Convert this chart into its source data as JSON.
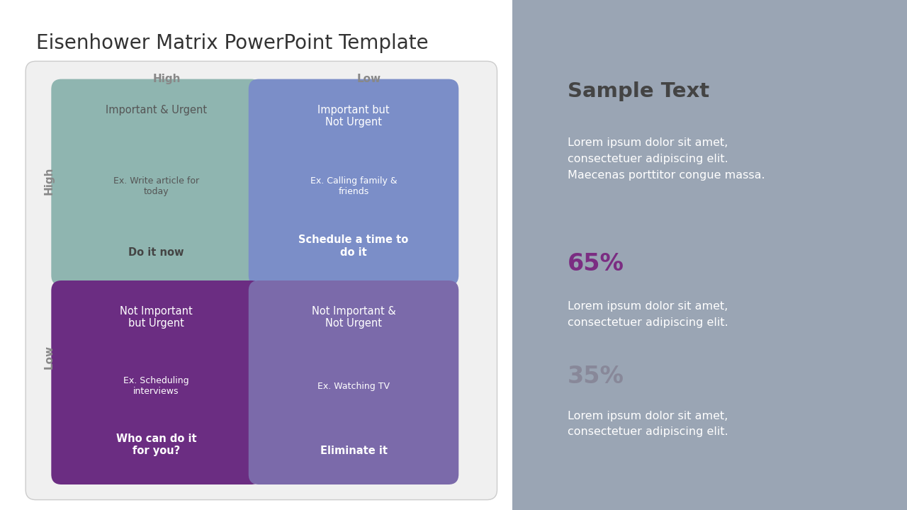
{
  "title": "Eisenhower Matrix PowerPoint Template",
  "title_fontsize": 20,
  "title_color": "#333333",
  "background_left": "#ffffff",
  "background_right": "#9aa5b4",
  "col_header_high": "High",
  "col_header_low": "Low",
  "row_header_high": "High",
  "row_header_low": "Low",
  "header_fontsize": 11,
  "header_color": "#888888",
  "quadrants": [
    {
      "title": "Important & Urgent",
      "example": "Ex. Write article for\ntoday",
      "action": "Do it now",
      "color": "#8fb5b0",
      "text_color": "#555555",
      "action_color": "#444444"
    },
    {
      "title": "Important but\nNot Urgent",
      "example": "Ex. Calling family &\nfriends",
      "action": "Schedule a time to\ndo it",
      "color": "#7b8ec8",
      "text_color": "#ffffff",
      "action_color": "#ffffff"
    },
    {
      "title": "Not Important\nbut Urgent",
      "example": "Ex. Scheduling\ninterviews",
      "action": "Who can do it\nfor you?",
      "color": "#6b2d82",
      "text_color": "#ffffff",
      "action_color": "#ffffff"
    },
    {
      "title": "Not Important &\nNot Urgent",
      "example": "Ex. Watching TV",
      "action": "Eliminate it",
      "color": "#7b6aaa",
      "text_color": "#ffffff",
      "action_color": "#ffffff"
    }
  ],
  "right_panel": {
    "sample_text_title": "Sample Text",
    "sample_text_title_color": "#444444",
    "sample_text_body": "Lorem ipsum dolor sit amet,\nconsectetuer adipiscing elit.\nMaecenas porttitor congue massa.",
    "sample_text_body_color": "#ffffff",
    "stat1_value": "65%",
    "stat1_color": "#7b2d82",
    "stat1_body": "Lorem ipsum dolor sit amet,\nconsectetuer adipiscing elit.",
    "stat1_body_color": "#ffffff",
    "stat2_value": "35%",
    "stat2_color": "#888899",
    "stat2_body": "Lorem ipsum dolor sit amet,\nconsectetuer adipiscing elit.",
    "stat2_body_color": "#ffffff"
  }
}
